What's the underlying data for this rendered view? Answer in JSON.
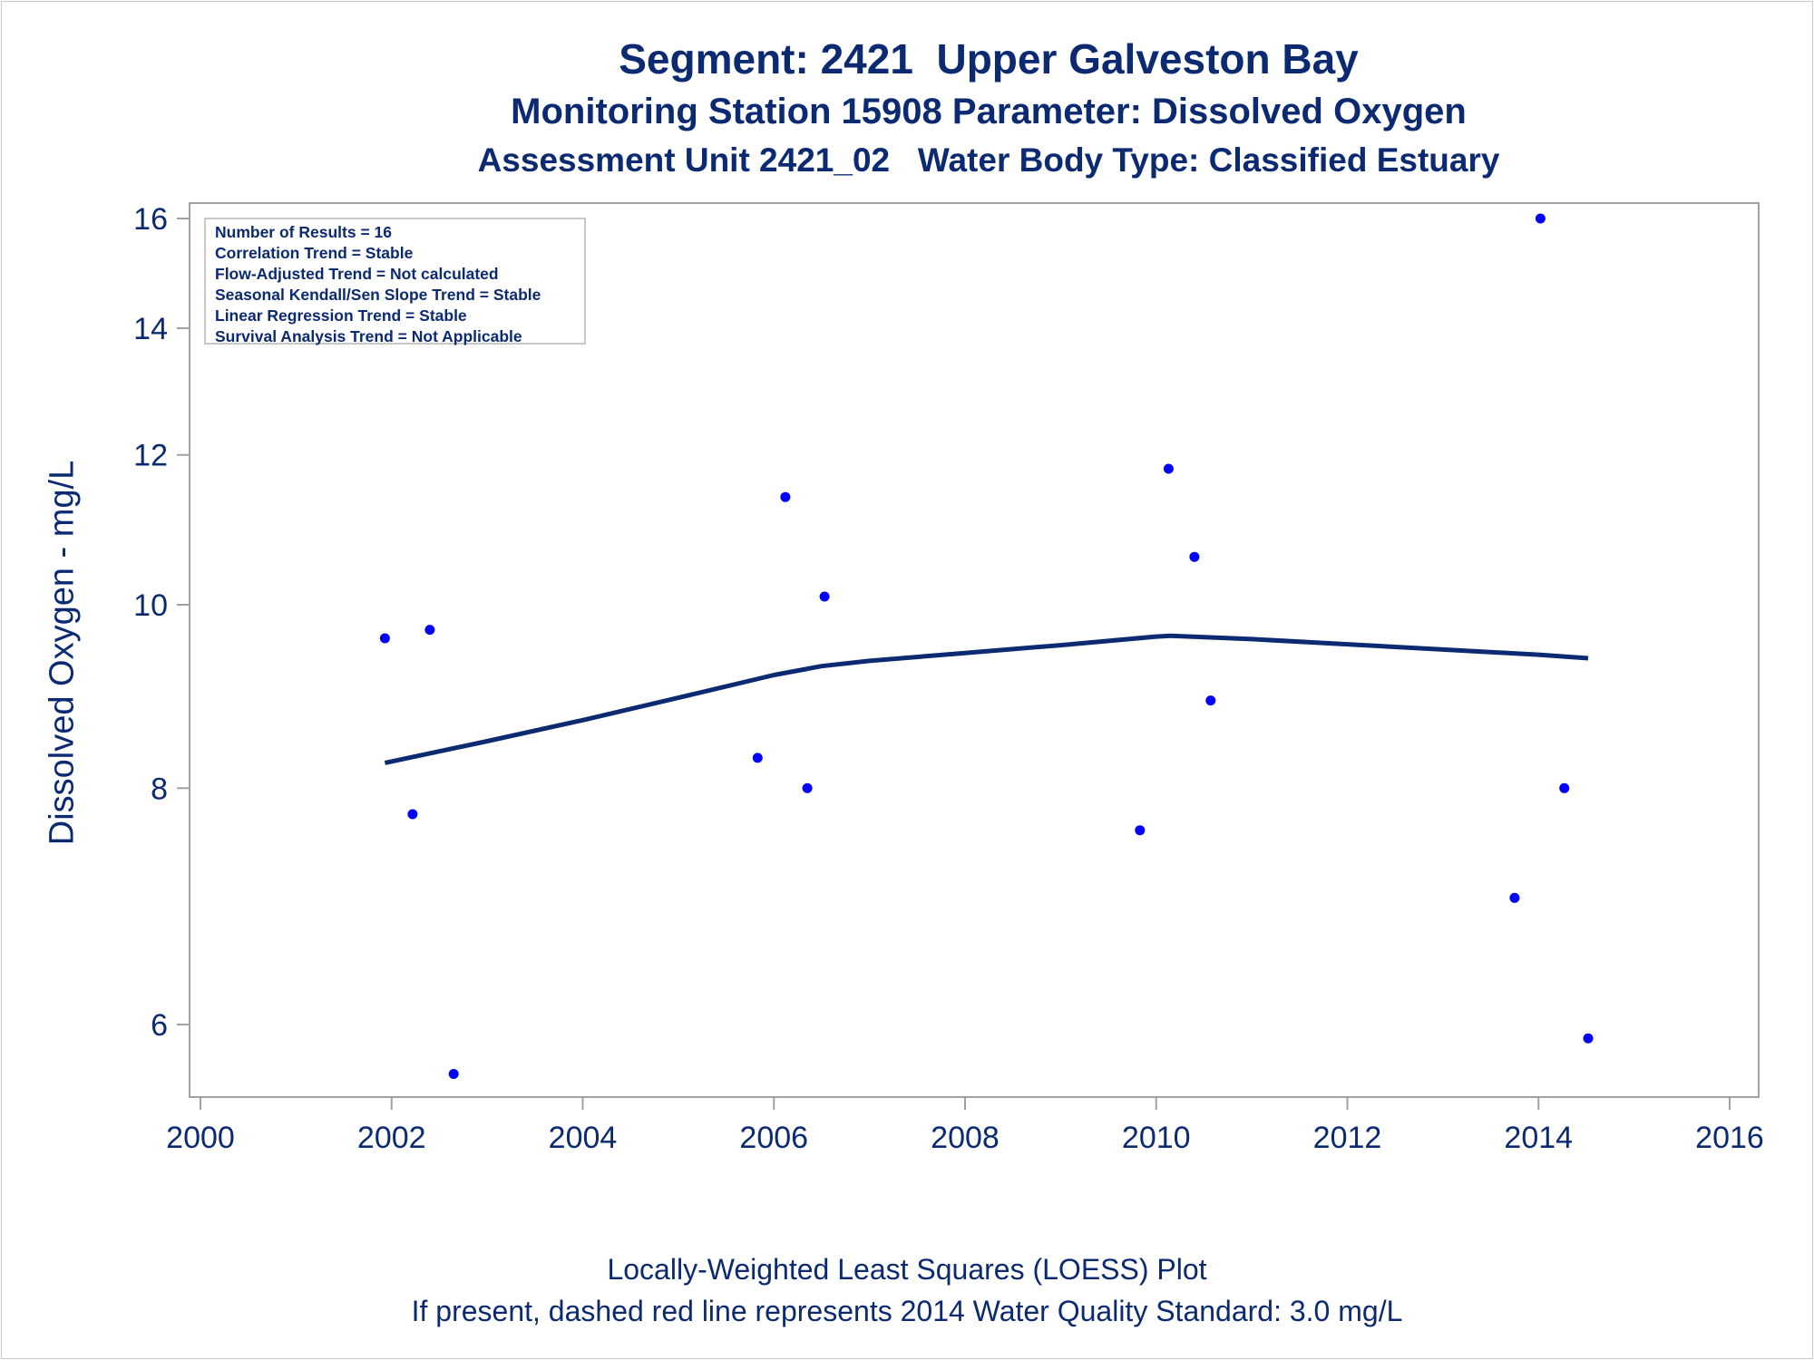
{
  "titles": {
    "line1": "Segment: 2421  Upper Galveston Bay",
    "line2": "Monitoring Station 15908 Parameter: Dissolved Oxygen",
    "line3": "Assessment Unit 2421_02   Water Body Type: Classified Estuary"
  },
  "stats": [
    "Number of Results = 16",
    "Correlation Trend = Stable",
    "Flow-Adjusted Trend = Not calculated",
    "Seasonal Kendall/Sen Slope Trend = Stable",
    "Linear Regression Trend = Stable",
    "Survival Analysis Trend = Not Applicable"
  ],
  "footnotes": {
    "line1": "Locally-Weighted Least Squares (LOESS) Plot",
    "line2": "If present, dashed red line represents 2014 Water Quality Standard: 3.0 mg/L"
  },
  "chart_data": {
    "type": "scatter",
    "title": "Segment: 2421  Upper Galveston Bay",
    "xlabel": "",
    "ylabel": "Dissolved Oxygen - mg/L",
    "y_scale": "log",
    "xlim": [
      2000,
      2016
    ],
    "ylim": [
      5.5,
      16.2
    ],
    "x_ticks": [
      2000,
      2002,
      2004,
      2006,
      2008,
      2010,
      2012,
      2014,
      2016
    ],
    "y_ticks": [
      6,
      8,
      10,
      12,
      14,
      16
    ],
    "grid": false,
    "colors": {
      "points": "#0000ff",
      "loess": "#0b2a72",
      "text": "#0b2a72",
      "axis": "#a0a0a0"
    },
    "series": [
      {
        "kind": "points",
        "x": [
          2001.93,
          2002.22,
          2002.4,
          2002.65,
          2005.83,
          2006.12,
          2006.35,
          2006.53,
          2009.83,
          2010.13,
          2010.4,
          2010.57,
          2013.75,
          2014.02,
          2014.27,
          2014.52
        ],
        "y": [
          9.6,
          7.75,
          9.7,
          5.65,
          8.3,
          11.4,
          8.0,
          10.1,
          7.6,
          11.8,
          10.6,
          8.9,
          7.0,
          16.0,
          8.0,
          5.9
        ]
      },
      {
        "kind": "loess",
        "x": [
          2001.93,
          2003.0,
          2004.0,
          2005.0,
          2006.0,
          2006.5,
          2007.0,
          2008.0,
          2009.0,
          2010.0,
          2010.15,
          2011.0,
          2012.0,
          2013.0,
          2014.0,
          2014.52
        ],
        "y": [
          8.25,
          8.47,
          8.69,
          8.93,
          9.18,
          9.28,
          9.34,
          9.43,
          9.52,
          9.62,
          9.63,
          9.59,
          9.53,
          9.47,
          9.41,
          9.37
        ]
      }
    ]
  }
}
